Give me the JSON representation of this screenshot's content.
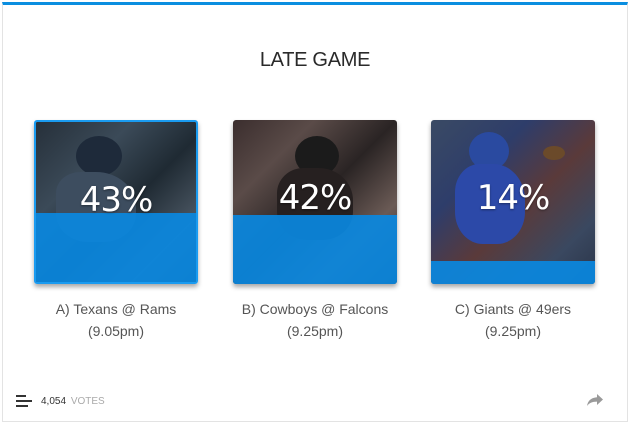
{
  "poll": {
    "title": "LATE GAME",
    "accent_color": "#0a8ee0",
    "options": [
      {
        "label": "A) Texans @ Rams",
        "time": "(9.05pm)",
        "percent_label": "43%",
        "percent": 43,
        "selected": true,
        "image": "texans-player-photo"
      },
      {
        "label": "B) Cowboys @ Falcons",
        "time": "(9.25pm)",
        "percent_label": "42%",
        "percent": 42,
        "selected": false,
        "image": "falcons-player-photo"
      },
      {
        "label": "C) Giants @ 49ers",
        "time": "(9.25pm)",
        "percent_label": "14%",
        "percent": 14,
        "selected": false,
        "image": "giants-player-photo"
      }
    ]
  },
  "footer": {
    "votes_count": "4,054",
    "votes_word": "VOTES",
    "results_icon": "bar-chart-icon",
    "share_icon": "share-arrow-icon"
  }
}
